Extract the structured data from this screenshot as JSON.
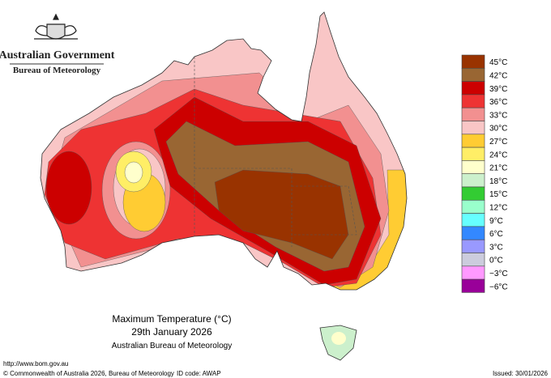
{
  "header": {
    "title": "Australian Government",
    "subtitle": "Bureau of Meteorology"
  },
  "map": {
    "title": "Maximum Temperature (°C)",
    "date": "29th January 2026",
    "source": "Australian Bureau of Meteorology"
  },
  "legend": [
    {
      "label": "45°C",
      "color": "#993300"
    },
    {
      "label": "42°C",
      "color": "#996633"
    },
    {
      "label": "39°C",
      "color": "#cc0000"
    },
    {
      "label": "36°C",
      "color": "#ee3333"
    },
    {
      "label": "33°C",
      "color": "#f29090"
    },
    {
      "label": "30°C",
      "color": "#f9c6c6"
    },
    {
      "label": "27°C",
      "color": "#ffcc33"
    },
    {
      "label": "24°C",
      "color": "#ffee66"
    },
    {
      "label": "21°C",
      "color": "#ffffcc"
    },
    {
      "label": "18°C",
      "color": "#ccf0cc"
    },
    {
      "label": "15°C",
      "color": "#33cc33"
    },
    {
      "label": "12°C",
      "color": "#99ffcc"
    },
    {
      "label": "9°C",
      "color": "#66ffff"
    },
    {
      "label": "6°C",
      "color": "#3388ff"
    },
    {
      "label": "3°C",
      "color": "#9999ff"
    },
    {
      "label": "0°C",
      "color": "#ccccdd"
    },
    {
      "label": "−3°C",
      "color": "#ff99ff"
    },
    {
      "label": "−6°C",
      "color": "#990099"
    }
  ],
  "footer": {
    "url": "http://www.bom.gov.au",
    "copyright": "© Commonwealth of Australia 2026, Bureau of Meteorology",
    "id_code": "ID code: AWAP",
    "issued": "Issued: 30/01/2026"
  }
}
